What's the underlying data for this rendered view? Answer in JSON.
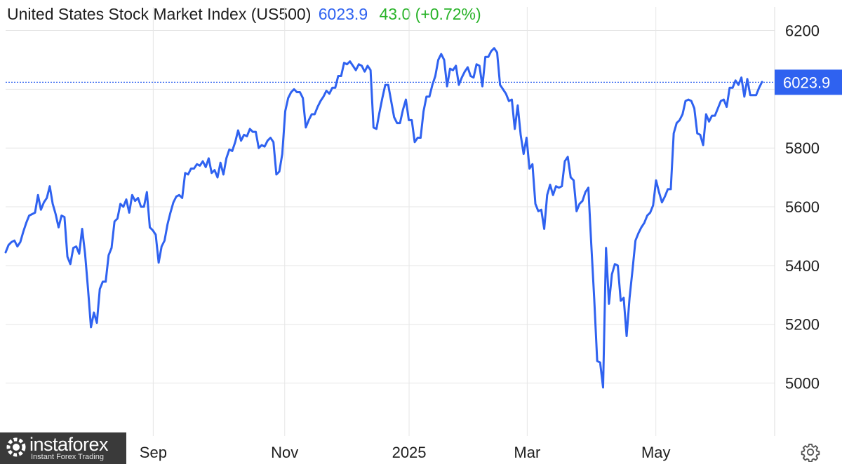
{
  "title": {
    "name": "United States Stock Market Index (US500)",
    "price": "6023.9",
    "change": "43.0 (+0.72%)"
  },
  "logo": {
    "name": "instaforex",
    "tagline": "Instant Forex Trading"
  },
  "colors": {
    "line": "#2f62f0",
    "price_text": "#2f62f0",
    "change_positive": "#29b329",
    "grid": "#e6e6e6",
    "axis_text": "#1f1f1f",
    "price_tag_bg": "#2f62f0"
  },
  "icons": {
    "settings": "gear-icon",
    "logo_mark": "gear-logo-icon"
  },
  "chart_data": {
    "type": "line",
    "title": "United States Stock Market Index (US500)",
    "xlabel": "",
    "ylabel": "",
    "ylim": [
      4820,
      6280
    ],
    "xlim": [
      0,
      1076
    ],
    "yticks": [
      5000,
      5200,
      5400,
      5600,
      5800,
      6000,
      6200
    ],
    "ytick_labels": [
      "5000",
      "5200",
      "5400",
      "5600",
      "5800",
      "",
      "6200"
    ],
    "xticks": [
      {
        "label": "Sep",
        "pos": 210
      },
      {
        "label": "Nov",
        "pos": 397
      },
      {
        "label": "2025",
        "pos": 574
      },
      {
        "label": "Mar",
        "pos": 742
      },
      {
        "label": "May",
        "pos": 925
      }
    ],
    "last_value": 6023.9,
    "last_value_label": "6023.9",
    "grid": true,
    "legend": "none",
    "series": [
      {
        "values": [
          5445,
          5470,
          5480,
          5485,
          5465,
          5480,
          5515,
          5545,
          5570,
          5575,
          5580,
          5640,
          5590,
          5615,
          5630,
          5670,
          5610,
          5575,
          5530,
          5570,
          5565,
          5430,
          5405,
          5460,
          5465,
          5440,
          5525,
          5440,
          5320,
          5190,
          5240,
          5205,
          5320,
          5345,
          5345,
          5435,
          5460,
          5550,
          5560,
          5610,
          5600,
          5625,
          5580,
          5640,
          5620,
          5630,
          5600,
          5600,
          5650,
          5530,
          5520,
          5505,
          5410,
          5465,
          5485,
          5540,
          5580,
          5615,
          5635,
          5640,
          5630,
          5715,
          5710,
          5730,
          5730,
          5745,
          5740,
          5755,
          5735,
          5765,
          5715,
          5725,
          5700,
          5750,
          5710,
          5765,
          5795,
          5790,
          5820,
          5860,
          5825,
          5845,
          5840,
          5865,
          5855,
          5855,
          5800,
          5810,
          5805,
          5825,
          5835,
          5820,
          5710,
          5720,
          5780,
          5925,
          5970,
          5990,
          6000,
          5990,
          5990,
          5970,
          5870,
          5895,
          5915,
          5915,
          5940,
          5960,
          5975,
          5995,
          5985,
          6005,
          6005,
          6045,
          6045,
          6090,
          6085,
          6095,
          6080,
          6065,
          6085,
          6080,
          6060,
          6080,
          6065,
          5870,
          5865,
          5920,
          5970,
          6015,
          6015,
          5960,
          5905,
          5885,
          5885,
          5930,
          5965,
          5895,
          5895,
          5820,
          5835,
          5835,
          5925,
          5975,
          5975,
          6015,
          6045,
          6100,
          6120,
          6100,
          6010,
          6070,
          6065,
          6080,
          6015,
          6040,
          6060,
          6075,
          6045,
          6040,
          6085,
          6080,
          6010,
          6110,
          6110,
          6130,
          6140,
          6125,
          6015,
          6000,
          5985,
          5960,
          5965,
          5865,
          5945,
          5845,
          5780,
          5835,
          5730,
          5745,
          5610,
          5585,
          5590,
          5525,
          5640,
          5675,
          5640,
          5670,
          5665,
          5670,
          5755,
          5770,
          5700,
          5690,
          5585,
          5610,
          5620,
          5650,
          5665,
          5470,
          5285,
          5075,
          5070,
          4985,
          5460,
          5270,
          5370,
          5405,
          5400,
          5280,
          5290,
          5160,
          5290,
          5385,
          5485,
          5510,
          5530,
          5545,
          5570,
          5580,
          5605,
          5690,
          5650,
          5615,
          5635,
          5660,
          5660,
          5850,
          5885,
          5895,
          5915,
          5960,
          5965,
          5960,
          5935,
          5850,
          5845,
          5810,
          5915,
          5890,
          5910,
          5910,
          5935,
          5960,
          5965,
          5940,
          6005,
          6005,
          6030,
          6015,
          6040,
          5975,
          6035,
          5980,
          5980,
          5980,
          6005,
          6025
        ]
      }
    ]
  }
}
